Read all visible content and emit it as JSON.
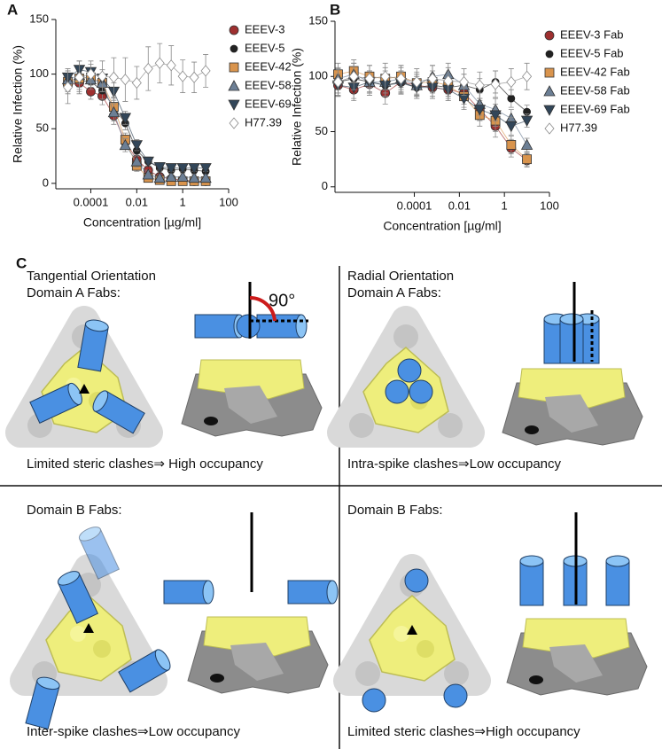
{
  "chart_data": [
    {
      "type": "line",
      "panel_label": "A",
      "xlabel": "Concentration [µg/ml]",
      "ylabel": "Relative Infection (%)",
      "log_x": true,
      "xlim": [
        3e-06,
        100
      ],
      "xticks": [
        0.0001,
        0.01,
        1,
        100
      ],
      "ylim": [
        -5,
        150
      ],
      "yticks": [
        0,
        50,
        100,
        150
      ],
      "legend": "right",
      "x": [
        1e-05,
        3.16e-05,
        0.0001,
        0.000316,
        0.001,
        0.00316,
        0.01,
        0.0316,
        0.1,
        0.316,
        1,
        3.16,
        10
      ],
      "series": [
        {
          "name": "EEEV-3",
          "color": "#9e2f2f",
          "marker": "circle",
          "values": [
            90,
            92,
            84,
            80,
            62,
            38,
            22,
            12,
            6,
            4,
            3,
            2,
            2
          ],
          "errors": [
            8,
            8,
            7,
            8,
            8,
            6,
            5,
            4,
            3,
            3,
            3,
            3,
            3
          ]
        },
        {
          "name": "EEEV-5",
          "color": "#222222",
          "marker": "dot",
          "values": [
            92,
            94,
            93,
            85,
            70,
            55,
            30,
            20,
            14,
            12,
            13,
            12,
            11
          ],
          "errors": [
            8,
            8,
            7,
            8,
            8,
            6,
            5,
            4,
            3,
            3,
            3,
            3,
            3
          ]
        },
        {
          "name": "EEEV-42",
          "color": "#d9944d",
          "marker": "square",
          "values": [
            93,
            96,
            97,
            92,
            70,
            40,
            16,
            5,
            3,
            2,
            2,
            2,
            2
          ],
          "errors": [
            8,
            8,
            7,
            8,
            8,
            6,
            5,
            4,
            3,
            3,
            3,
            3,
            3
          ]
        },
        {
          "name": "EEEV-58",
          "color": "#6c7f95",
          "marker": "triangle",
          "values": [
            95,
            99,
            95,
            92,
            65,
            35,
            20,
            8,
            5,
            6,
            6,
            5,
            5
          ],
          "errors": [
            8,
            8,
            7,
            8,
            8,
            6,
            5,
            4,
            3,
            3,
            3,
            3,
            3
          ]
        },
        {
          "name": "EEEV-69",
          "color": "#324659",
          "marker": "triangle-down",
          "values": [
            97,
            104,
            102,
            96,
            84,
            60,
            35,
            20,
            15,
            14,
            14,
            14,
            14
          ],
          "errors": [
            8,
            8,
            7,
            8,
            8,
            6,
            5,
            4,
            3,
            3,
            3,
            3,
            3
          ]
        },
        {
          "name": "H77.39",
          "color": "#8a8a8a",
          "marker": "diamond-open",
          "values": [
            88,
            97,
            100,
            98,
            97,
            95,
            92,
            105,
            110,
            108,
            98,
            97,
            103
          ],
          "errors": [
            15,
            15,
            12,
            14,
            18,
            20,
            15,
            20,
            18,
            18,
            15,
            14,
            15
          ]
        }
      ]
    },
    {
      "type": "line",
      "panel_label": "B",
      "xlabel": "Concentration [µg/ml]",
      "ylabel": "Relative Infection (%)",
      "log_x": true,
      "xlim": [
        3e-08,
        100
      ],
      "xticks": [
        0.0001,
        0.01,
        1,
        100
      ],
      "ylim": [
        -5,
        150
      ],
      "yticks": [
        0,
        50,
        100,
        150
      ],
      "legend": "right",
      "x": [
        4.096e-08,
        2.048e-07,
        1.024e-06,
        5.12e-06,
        2.56e-05,
        0.000128,
        0.00064,
        0.0032,
        0.016,
        0.08,
        0.4,
        2,
        10
      ],
      "series": [
        {
          "name": "EEEV-3 Fab",
          "color": "#9e2f2f",
          "marker": "circle",
          "values": [
            92,
            88,
            93,
            85,
            95,
            92,
            90,
            88,
            85,
            70,
            55,
            35,
            24
          ],
          "errors": [
            10,
            10,
            10,
            10,
            10,
            10,
            10,
            10,
            10,
            10,
            10,
            8,
            6
          ]
        },
        {
          "name": "EEEV-5 Fab",
          "color": "#222222",
          "marker": "dot",
          "values": [
            95,
            98,
            95,
            92,
            95,
            90,
            92,
            90,
            92,
            88,
            95,
            80,
            68
          ],
          "errors": [
            10,
            10,
            10,
            10,
            10,
            10,
            10,
            10,
            10,
            10,
            10,
            8,
            6
          ]
        },
        {
          "name": "EEEV-42 Fab",
          "color": "#d9944d",
          "marker": "square",
          "values": [
            102,
            105,
            100,
            98,
            100,
            94,
            95,
            92,
            82,
            65,
            60,
            38,
            25
          ],
          "errors": [
            10,
            10,
            10,
            10,
            10,
            10,
            10,
            10,
            10,
            10,
            10,
            8,
            6
          ]
        },
        {
          "name": "EEEV-58 Fab",
          "color": "#6c7f95",
          "marker": "triangle",
          "values": [
            98,
            102,
            95,
            95,
            98,
            92,
            100,
            102,
            92,
            75,
            70,
            62,
            38
          ],
          "errors": [
            10,
            10,
            10,
            10,
            10,
            10,
            10,
            10,
            10,
            10,
            10,
            8,
            6
          ]
        },
        {
          "name": "EEEV-69 Fab",
          "color": "#324659",
          "marker": "triangle-down",
          "values": [
            92,
            90,
            95,
            92,
            94,
            90,
            90,
            88,
            80,
            70,
            65,
            55,
            60
          ],
          "errors": [
            10,
            10,
            10,
            10,
            10,
            10,
            10,
            10,
            10,
            10,
            10,
            8,
            6
          ]
        },
        {
          "name": "H77.39",
          "color": "#8a8a8a",
          "marker": "diamond-open",
          "values": [
            95,
            100,
            98,
            100,
            98,
            95,
            98,
            96,
            95,
            92,
            93,
            95,
            100
          ],
          "errors": [
            12,
            12,
            12,
            12,
            12,
            12,
            12,
            12,
            12,
            12,
            12,
            12,
            12
          ]
        }
      ]
    }
  ],
  "panel_c": {
    "label": "C",
    "quadrants": [
      {
        "title": [
          "Tangential Orientation",
          "Domain A Fabs:"
        ],
        "caption": "Limited steric clashes⇒ High occupancy",
        "angle_label": "90°"
      },
      {
        "title": [
          "Radial Orientation",
          "Domain A Fabs:"
        ],
        "caption": "Intra-spike clashes⇒Low occupancy"
      },
      {
        "title": [
          "Domain B Fabs:"
        ],
        "caption": "Inter-spike clashes⇒Low occupancy"
      },
      {
        "title": [
          "Domain B Fabs:"
        ],
        "caption": "Limited steric clashes⇒High occupancy"
      }
    ]
  }
}
